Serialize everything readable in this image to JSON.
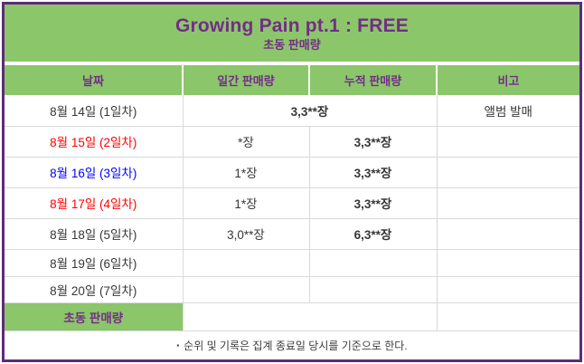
{
  "page": {
    "title": "Growing Pain pt.1 : FREE",
    "subtitle": "초동 판매량"
  },
  "colors": {
    "header_green": "#8cc66b",
    "purple_text": "#732e86",
    "purple_border": "#5e2b7a",
    "holiday_red": "#ff0000",
    "saturday_blue": "#0000ff",
    "grid_line": "#d9d9d9"
  },
  "table": {
    "headers": [
      "날짜",
      "일간 판매량",
      "누적 판매량",
      "비고"
    ],
    "rows": [
      {
        "date": "8월 14일 (1일차)",
        "date_color": "black",
        "daily_cumulative_merged": "3,3**장",
        "remark": "앨범 발매"
      },
      {
        "date": "8월 15일 (2일차)",
        "date_color": "red",
        "daily": "*장",
        "cumulative": "3,3**장",
        "remark": ""
      },
      {
        "date": "8월 16일 (3일차)",
        "date_color": "blue",
        "daily": "1*장",
        "cumulative": "3,3**장",
        "remark": ""
      },
      {
        "date": "8월 17일 (4일차)",
        "date_color": "red",
        "daily": "1*장",
        "cumulative": "3,3**장",
        "remark": ""
      },
      {
        "date": "8월 18일 (5일차)",
        "date_color": "black",
        "daily": "3,0**장",
        "cumulative": "6,3**장",
        "remark": ""
      },
      {
        "date": "8월 19일 (6일차)",
        "date_color": "black",
        "daily": "",
        "cumulative": "",
        "remark": ""
      },
      {
        "date": "8월 20일 (7일차)",
        "date_color": "black",
        "daily": "",
        "cumulative": "",
        "remark": ""
      }
    ],
    "summary": {
      "label": "초동 판매량",
      "value": "",
      "remark": ""
    },
    "footnote": {
      "bullet": "▪",
      "text": "순위 및 기록은 집계 종료일 당시를 기준으로 한다."
    }
  }
}
